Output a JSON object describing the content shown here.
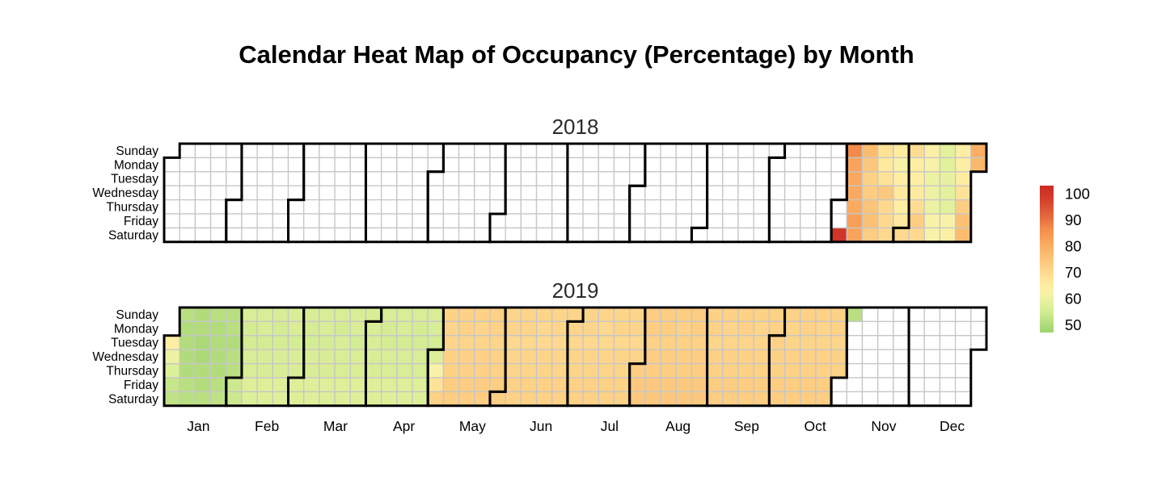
{
  "title": "Calendar Heat Map of Occupancy (Percentage) by Month",
  "chart_data": {
    "type": "heatmap",
    "subtype": "calendar-heatmap",
    "years": [
      "2018",
      "2019"
    ],
    "day_rows": [
      "Sunday",
      "Monday",
      "Tuesday",
      "Wednesday",
      "Thursday",
      "Friday",
      "Saturday"
    ],
    "month_columns": [
      "Jan",
      "Feb",
      "Mar",
      "Apr",
      "May",
      "Jun",
      "Jul",
      "Aug",
      "Sep",
      "Oct",
      "Nov",
      "Dec"
    ],
    "legend": {
      "ticks": [
        "100",
        "90",
        "80",
        "70",
        "60",
        "50"
      ],
      "tick_values": [
        100,
        90,
        80,
        70,
        60,
        50
      ],
      "domain": [
        47,
        103
      ],
      "color_stops": [
        [
          47,
          "#9ed36f"
        ],
        [
          50,
          "#b2dc7c"
        ],
        [
          55,
          "#d4ec94"
        ],
        [
          58,
          "#e3f09c"
        ],
        [
          60,
          "#edf2a2"
        ],
        [
          62,
          "#f8f2a8"
        ],
        [
          64,
          "#feeea4"
        ],
        [
          66,
          "#fee99e"
        ],
        [
          68,
          "#fee297"
        ],
        [
          70,
          "#fdd88e"
        ],
        [
          72,
          "#fdd186"
        ],
        [
          74,
          "#fcc87d"
        ],
        [
          76,
          "#fcc074"
        ],
        [
          78,
          "#fbb76c"
        ],
        [
          80,
          "#fbae64"
        ],
        [
          83,
          "#f89e59"
        ],
        [
          85,
          "#f5944f"
        ],
        [
          87,
          "#f28a4b"
        ],
        [
          90,
          "#e7703f"
        ],
        [
          95,
          "#da5034"
        ],
        [
          100,
          "#d03527"
        ],
        [
          103,
          "#c92b20"
        ]
      ]
    },
    "colors": {
      "grid": "#c6c6c6",
      "month_outline": "#000000",
      "na_fill": "#ffffff",
      "text": "#000000"
    },
    "occupancy": {
      "2018": {
        "11": [
          null,
          null,
          100,
          87,
          82,
          81,
          81,
          81,
          83,
          82,
          77,
          74,
          72,
          73,
          75,
          76,
          73,
          68,
          66,
          68,
          74,
          70,
          70,
          70,
          65,
          62,
          64,
          66,
          64,
          66
        ],
        "12": [
          70,
          69,
          64,
          64,
          66,
          69,
          73,
          70,
          63,
          62,
          60,
          60,
          60,
          62,
          62,
          58,
          58,
          59,
          58,
          58,
          62,
          63,
          64,
          64,
          65,
          68,
          73,
          76,
          77,
          80,
          78
        ]
      },
      "2019": {
        "1": [
          64,
          60,
          57,
          53,
          52,
          51,
          50,
          50,
          50,
          50,
          51,
          51,
          50,
          50,
          49,
          49,
          50,
          50,
          51,
          51,
          50,
          50,
          50,
          50,
          51,
          52,
          51,
          51,
          50,
          51,
          51
        ],
        "2": [
          54,
          54,
          56,
          55,
          55,
          56,
          56,
          57,
          57,
          56,
          56,
          55,
          56,
          56,
          57,
          57,
          56,
          55,
          55,
          56,
          56,
          57,
          57,
          56,
          56,
          55,
          56,
          56
        ],
        "3": [
          57,
          57,
          56,
          55,
          55,
          56,
          56,
          57,
          57,
          56,
          56,
          55,
          56,
          56,
          57,
          57,
          56,
          55,
          56,
          56,
          56,
          57,
          57,
          56,
          56,
          55,
          56,
          56,
          57,
          57,
          56
        ],
        "4": [
          56,
          56,
          56,
          56,
          57,
          57,
          56,
          55,
          55,
          56,
          56,
          57,
          57,
          56,
          56,
          55,
          56,
          56,
          57,
          57,
          56,
          55,
          55,
          56,
          56,
          57,
          57,
          56,
          56,
          55
        ],
        "5": [
          57,
          62,
          68,
          72,
          72,
          71,
          71,
          72,
          72,
          73,
          73,
          72,
          72,
          71,
          72,
          72,
          73,
          73,
          72,
          71,
          71,
          72,
          72,
          73,
          73,
          72,
          72,
          71,
          72,
          72,
          73
        ],
        "6": [
          73,
          71,
          71,
          70,
          71,
          71,
          72,
          72,
          71,
          71,
          70,
          71,
          71,
          72,
          72,
          71,
          70,
          70,
          71,
          71,
          72,
          72,
          71,
          71,
          70,
          71,
          71,
          72,
          72,
          71
        ],
        "7": [
          71,
          70,
          71,
          71,
          72,
          72,
          71,
          71,
          70,
          71,
          71,
          72,
          72,
          71,
          70,
          70,
          71,
          71,
          72,
          72,
          71,
          71,
          70,
          71,
          71,
          72,
          72,
          71,
          71,
          70,
          71
        ],
        "8": [
          73,
          74,
          74,
          73,
          73,
          72,
          73,
          73,
          74,
          74,
          73,
          73,
          72,
          73,
          73,
          74,
          74,
          73,
          72,
          72,
          73,
          73,
          74,
          74,
          73,
          73,
          72,
          73,
          73,
          74,
          74
        ],
        "9": [
          72,
          72,
          71,
          72,
          72,
          73,
          73,
          72,
          71,
          71,
          72,
          72,
          73,
          73,
          72,
          72,
          71,
          72,
          72,
          73,
          73,
          72,
          71,
          71,
          72,
          72,
          73,
          73,
          72,
          72
        ],
        "10": [
          72,
          72,
          72,
          73,
          73,
          72,
          71,
          71,
          72,
          72,
          73,
          73,
          72,
          72,
          71,
          72,
          72,
          73,
          73,
          72,
          71,
          71,
          72,
          72,
          73,
          73,
          72,
          72,
          71,
          72,
          72
        ],
        "11": [
          null,
          null,
          51,
          null,
          null,
          null,
          null,
          null,
          null,
          null,
          null,
          null,
          null,
          null,
          null,
          null,
          null,
          null,
          null,
          null,
          null,
          null,
          null,
          null,
          null,
          null,
          null,
          null,
          null,
          null
        ]
      }
    }
  }
}
